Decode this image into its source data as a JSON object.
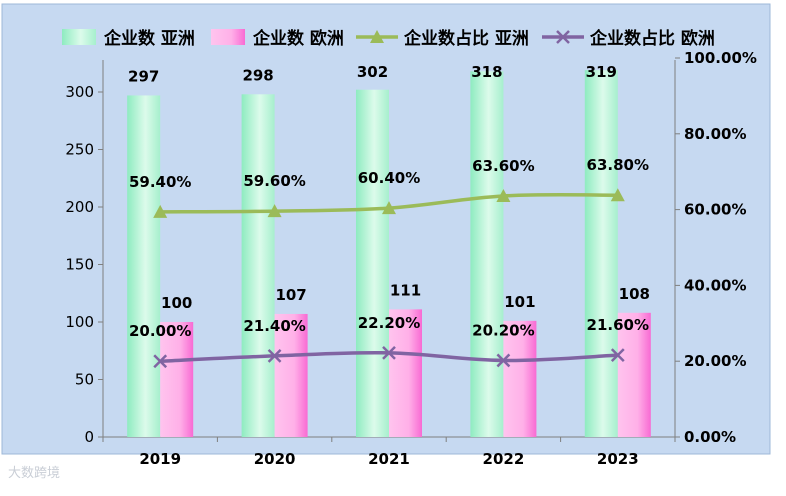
{
  "chart_data": {
    "type": "bar",
    "categories": [
      "2019",
      "2020",
      "2021",
      "2022",
      "2023"
    ],
    "series": [
      {
        "name": "企业数 亚洲",
        "kind": "bar",
        "axis": "left",
        "values": [
          297,
          298,
          302,
          318,
          319
        ],
        "color": "#b6f2d6"
      },
      {
        "name": "企业数 欧洲",
        "kind": "bar",
        "axis": "left",
        "values": [
          100,
          107,
          111,
          101,
          108
        ],
        "color": "#ff9de2"
      },
      {
        "name": "企业数占比 亚洲",
        "kind": "line",
        "axis": "right",
        "values": [
          59.4,
          59.6,
          60.4,
          63.6,
          63.8
        ],
        "color": "#9bbb59",
        "marker": "triangle"
      },
      {
        "name": "企业数占比 欧洲",
        "kind": "line",
        "axis": "right",
        "values": [
          20.0,
          21.4,
          22.2,
          20.2,
          21.6
        ],
        "color": "#8064a2",
        "marker": "x"
      }
    ],
    "left_axis": {
      "min": 0,
      "max": 300,
      "ticks": [
        "0",
        "50",
        "100",
        "150",
        "200",
        "250",
        "300"
      ]
    },
    "right_axis": {
      "min": 0,
      "max": 100,
      "ticks": [
        "0.00%",
        "20.00%",
        "40.00%",
        "60.00%",
        "80.00%",
        "100.00%"
      ]
    },
    "bar_labels": {
      "asia": [
        "297",
        "298",
        "302",
        "318",
        "319"
      ],
      "europe": [
        "100",
        "107",
        "111",
        "101",
        "108"
      ]
    },
    "line_labels": {
      "asia": [
        "59.40%",
        "59.60%",
        "60.40%",
        "63.60%",
        "63.80%"
      ],
      "europe": [
        "20.00%",
        "21.40%",
        "22.20%",
        "20.20%",
        "21.60%"
      ]
    },
    "legend_position": "top",
    "plot_background": "#c6d9f1",
    "grid": false
  },
  "watermark": "大数跨境"
}
